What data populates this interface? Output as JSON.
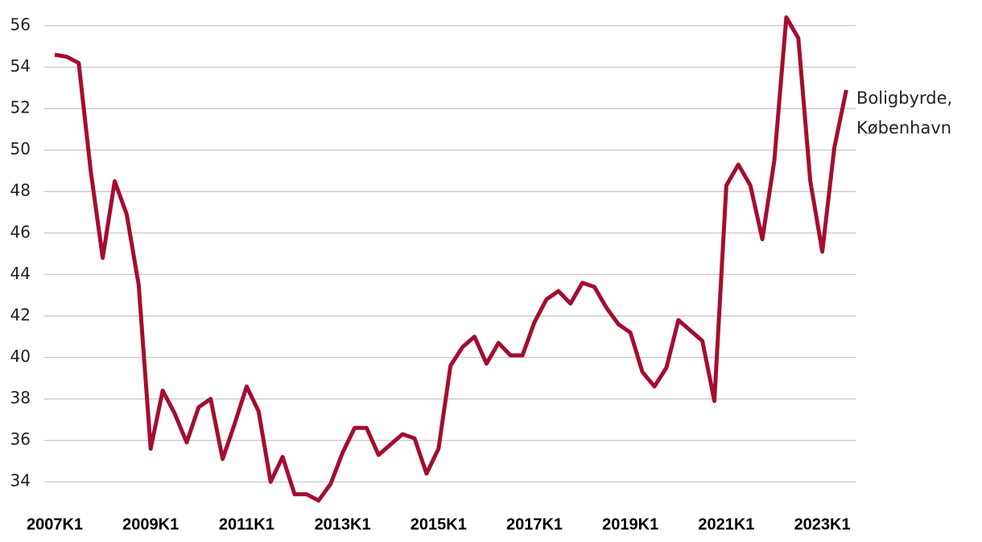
{
  "chart_data": {
    "type": "line",
    "categories": [
      "2007K1",
      null,
      null,
      null,
      null,
      null,
      null,
      null,
      "2009K1",
      null,
      null,
      null,
      null,
      null,
      null,
      null,
      "2011K1",
      null,
      null,
      null,
      null,
      null,
      null,
      null,
      "2013K1",
      null,
      null,
      null,
      null,
      null,
      null,
      null,
      "2015K1",
      null,
      null,
      null,
      null,
      null,
      null,
      null,
      "2017K1",
      null,
      null,
      null,
      null,
      null,
      null,
      null,
      "2019K1",
      null,
      null,
      null,
      null,
      null,
      null,
      null,
      "2021K1",
      null,
      null,
      null,
      null,
      null,
      null,
      null,
      "2023K1",
      null,
      null
    ],
    "series": [
      {
        "name": "Boligbyrde, København",
        "color": "#a50d30",
        "values": [
          54.6,
          54.5,
          54.2,
          49.0,
          44.8,
          48.5,
          46.9,
          43.5,
          35.6,
          38.4,
          37.3,
          35.9,
          37.6,
          38.0,
          35.1,
          36.8,
          38.6,
          37.4,
          34.0,
          35.2,
          33.4,
          33.4,
          33.1,
          33.9,
          35.4,
          36.6,
          36.6,
          35.3,
          35.8,
          36.3,
          36.1,
          34.4,
          35.6,
          39.6,
          40.5,
          41.0,
          39.7,
          40.7,
          40.1,
          40.1,
          41.7,
          42.8,
          43.2,
          42.6,
          43.6,
          43.4,
          42.4,
          41.6,
          41.2,
          39.3,
          38.6,
          39.5,
          41.8,
          41.3,
          40.8,
          37.9,
          48.3,
          49.3,
          48.3,
          45.7,
          49.5,
          56.4,
          55.4,
          48.5,
          45.1,
          50.1,
          52.9
        ]
      }
    ],
    "ylim": [
      33,
      56.5
    ],
    "yticks": [
      34,
      36,
      38,
      40,
      42,
      44,
      46,
      48,
      50,
      52,
      54,
      56
    ],
    "grid": true
  }
}
